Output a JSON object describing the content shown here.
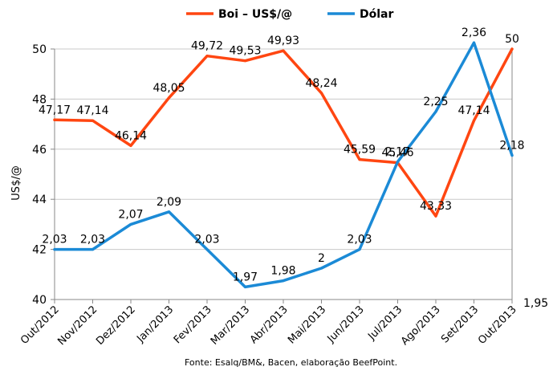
{
  "chart_data": {
    "type": "line",
    "categories": [
      "Out/2012",
      "Nov/2012",
      "Dez/2012",
      "Jan/2013",
      "Fev/2013",
      "Mar/2013",
      "Abr/2013",
      "Mai/2013",
      "Jun/2013",
      "Jul/2013",
      "Ago/2013",
      "Set/2013",
      "Out/2013"
    ],
    "ylabel": "US$/@",
    "ylim": [
      40,
      50
    ],
    "yticks": [
      "40",
      "42",
      "44",
      "46",
      "48",
      "50"
    ],
    "y2": {
      "ylim": [
        1.95,
        2.35
      ],
      "tick_labels": [
        "1,95"
      ]
    },
    "series": [
      {
        "name": "Boi – US$/@",
        "axis": "left",
        "color": "#ff4611",
        "values": [
          47.17,
          47.14,
          46.14,
          48.05,
          49.72,
          49.53,
          49.93,
          48.24,
          45.59,
          45.46,
          43.33,
          47.14,
          50
        ],
        "labels": [
          "47,17",
          "47,14",
          "46,14",
          "48,05",
          "49,72",
          "49,53",
          "49,93",
          "48,24",
          "45,59",
          "45,46",
          "43,33",
          "47,14",
          "50"
        ]
      },
      {
        "name": "Dólar",
        "axis": "right",
        "color": "#1b8ad6",
        "values": [
          2.03,
          2.03,
          2.07,
          2.09,
          2.03,
          1.97,
          1.98,
          2.0,
          2.03,
          2.17,
          2.25,
          2.36,
          2.18
        ],
        "labels": [
          "2,03",
          "2,03",
          "2,07",
          "2,09",
          "2,03",
          "1,97",
          "1,98",
          "2",
          "2,03",
          "2,17",
          "2,25",
          "2,36",
          "2,18"
        ]
      }
    ],
    "legend": "top-center",
    "grid": true,
    "source": "Fonte: Esalq/BM&, Bacen, elaboração BeefPoint."
  }
}
